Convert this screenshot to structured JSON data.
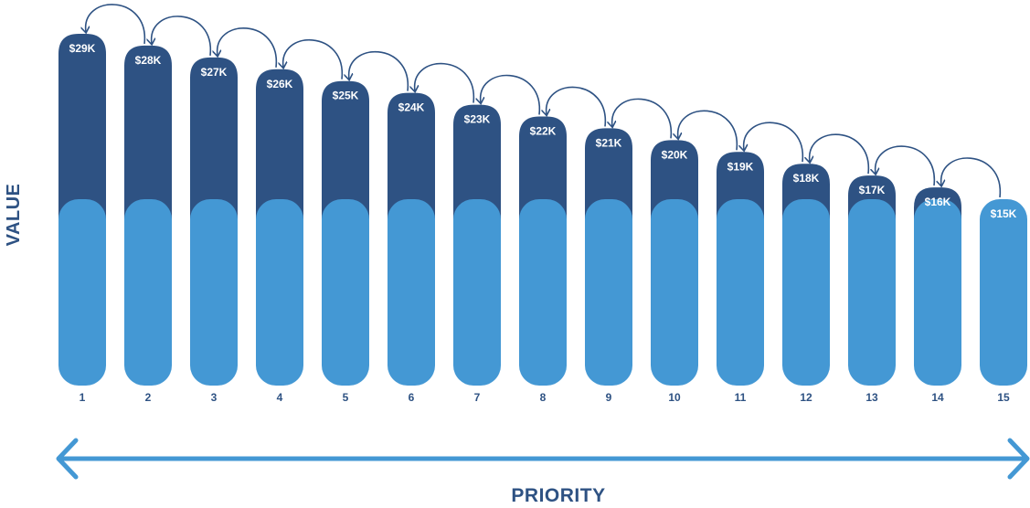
{
  "chart_data": {
    "type": "bar",
    "title": "",
    "xlabel": "PRIORITY",
    "ylabel": "VALUE",
    "categories": [
      "1",
      "2",
      "3",
      "4",
      "5",
      "6",
      "7",
      "8",
      "9",
      "10",
      "11",
      "12",
      "13",
      "14",
      "15"
    ],
    "values": [
      29,
      28,
      27,
      26,
      25,
      24,
      23,
      22,
      21,
      20,
      19,
      18,
      17,
      16,
      15
    ],
    "value_unit": "$K",
    "value_labels": [
      "$29K",
      "$28K",
      "$27K",
      "$26K",
      "$25K",
      "$24K",
      "$23K",
      "$22K",
      "$21K",
      "$20K",
      "$19K",
      "$18K",
      "$17K",
      "$16K",
      "$15K"
    ],
    "baseline_value": 15,
    "ylim": [
      0,
      29
    ],
    "grid": false,
    "legend": "none",
    "arrows_between_bars": true,
    "x_axis_arrow": "double-headed",
    "colors": {
      "upper_segment": "#2e5283",
      "base_segment": "#4498d4",
      "arrow_axis": "#4498d4",
      "curved_arrows": "#2e5283",
      "labels": "#2e5283",
      "value_text": "#ffffff"
    }
  }
}
